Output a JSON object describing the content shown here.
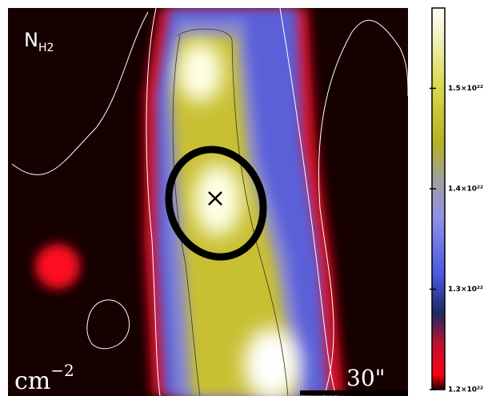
{
  "chart_data": {
    "type": "image",
    "label": "N",
    "label_subscript": "H2",
    "unit": "cm",
    "unit_superscript": "−2",
    "scale_bar": "30\"",
    "clim": [
      1.2e+22,
      1.58e+22
    ],
    "cticks": [
      {
        "value": 1.2e+22,
        "label": "1.2×10²²"
      },
      {
        "value": 1.3e+22,
        "label": "1.3×10²²"
      },
      {
        "value": 1.4e+22,
        "label": "1.4×10²²"
      },
      {
        "value": 1.5e+22,
        "label": "1.5×10²²"
      }
    ]
  }
}
